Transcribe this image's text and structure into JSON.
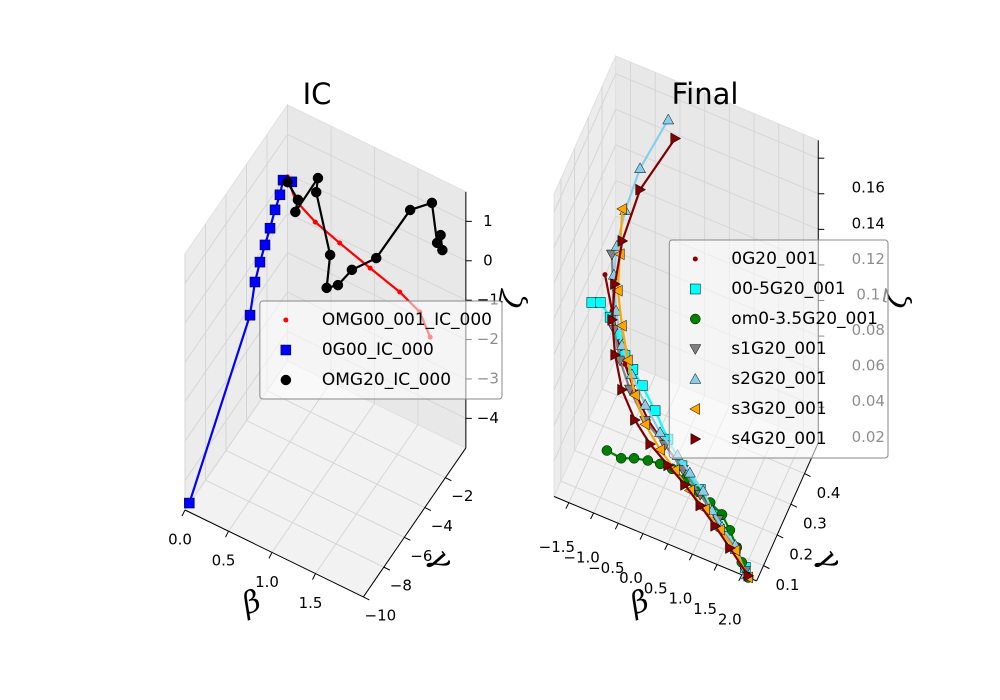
{
  "chart_data": [
    {
      "type": "scatter3d",
      "title": "IC",
      "xlabel": "β",
      "ylabel": "γ",
      "zlabel": "ζ",
      "xlim": [
        0,
        2.05
      ],
      "ylim": [
        -10,
        0
      ],
      "zlim": [
        -4.75,
        1.75
      ],
      "xticks": [
        {
          "value": 0,
          "label": "0.0"
        },
        0.5,
        {
          "value": 1,
          "label": "1.0"
        },
        1.5
      ],
      "yticks": [
        {
          "value": -10,
          "label": "−10"
        },
        {
          "value": -8,
          "label": "−8"
        },
        {
          "value": -6,
          "label": "−6"
        },
        {
          "value": -4,
          "label": "−4"
        },
        {
          "value": -2,
          "label": "−2"
        }
      ],
      "zticks": [
        {
          "value": -4,
          "label": "−4"
        },
        {
          "value": -3,
          "label": "−3"
        },
        {
          "value": -2,
          "label": "−2"
        },
        {
          "value": -1,
          "label": "−1"
        },
        0,
        1
      ],
      "grid": true,
      "legend": "center right",
      "series": [
        {
          "name": "OMG00_001_IC_000",
          "color": "#ff0000",
          "marker": "dot",
          "x": [
            0,
            0.09,
            0.32,
            0.6,
            0.95,
            1.29,
            1.52,
            1.64
          ],
          "y": [
            0,
            0,
            0,
            0,
            0,
            0,
            0,
            0
          ],
          "z": [
            -0.08,
            -0.57,
            -0.88,
            -1.11,
            -1.37,
            -1.61,
            -1.87,
            -2.38
          ]
        },
        {
          "name": "0G00_IC_000",
          "color": "#0000ff",
          "marker": "square",
          "x": [
            0.05,
            0.05,
            0.05,
            0.05,
            0.05,
            0.05,
            0.05,
            0.05,
            0.05,
            0.05
          ],
          "y": [
            -10,
            -4.08,
            -3.6,
            -3.11,
            -2.62,
            -2.13,
            -1.64,
            -1.16,
            -0.86,
            0
          ],
          "z": [
            -4.52,
            -1.99,
            -1.33,
            -1.01,
            -0.76,
            -0.52,
            -0.24,
            -0.04,
            0.22,
            -0.15
          ]
        },
        {
          "name": "OMG20_IC_000",
          "color": "#000000",
          "marker": "circle",
          "x": [
            0,
            0.12,
            0.09,
            0.35,
            0.33,
            0.49,
            0.45,
            0.58,
            0.74,
            1.02,
            1.41,
            1.66,
            1.72,
            1.76,
            1.78
          ],
          "y": [
            0,
            0,
            0,
            0,
            0,
            0,
            0,
            0,
            0,
            0,
            0,
            0,
            0,
            0,
            0
          ],
          "z": [
            -0.21,
            -0.53,
            -0.87,
            0.27,
            -0.11,
            -1.53,
            -2.41,
            -2.2,
            -1.64,
            -1.04,
            0.6,
            1.05,
            0.1,
            0.34,
            -0.02
          ]
        }
      ]
    },
    {
      "type": "scatter3d",
      "title": "Final",
      "xlabel": "β",
      "ylabel": "γ",
      "zlabel": "ζ",
      "xlim": [
        -1.8,
        2.3
      ],
      "ylim": [
        0.05,
        0.5
      ],
      "zlim": [
        0,
        0.17
      ],
      "xticks": [
        {
          "value": -1.5,
          "label": "−1.5"
        },
        {
          "value": -1,
          "label": "−1.0"
        },
        {
          "value": -0.5,
          "label": "−0.5"
        },
        {
          "value": 0,
          "label": "0.0"
        },
        0.5,
        {
          "value": 1,
          "label": "1.0"
        },
        1.5,
        {
          "value": 2,
          "label": "2.0"
        }
      ],
      "yticks": [
        0.1,
        0.2,
        0.3,
        0.4
      ],
      "zticks": [
        0.02,
        0.04,
        0.06,
        0.08,
        0.1,
        0.12,
        0.14,
        0.16
      ],
      "grid": true,
      "legend": "center right",
      "series": [
        {
          "name": "0G20_001",
          "color": "#8b0000",
          "marker": "dot",
          "x": [
            -1.74,
            -1.18,
            -1.06,
            -0.92,
            -0.72,
            -0.45,
            -0.11,
            0.65,
            1.02,
            1.38,
            1.73,
            2.13
          ],
          "y": [
            0.4,
            0.25,
            0.25,
            0.25,
            0.25,
            0.25,
            0.25,
            0.1,
            0.1,
            0.1,
            0.1,
            0.05
          ],
          "z": [
            0.065,
            0.077,
            0.062,
            0.05,
            0.037,
            0.024,
            0.014,
            0.036,
            0.025,
            0.015,
            0.003,
            0.001
          ]
        },
        {
          "name": "00-5G20_001",
          "color": "#00ffff",
          "marker": "square",
          "x": [
            -1.59,
            -1.42,
            -1.22,
            -1.06,
            -0.92,
            -0.76,
            -0.57,
            -0.31,
            -0.05,
            0.65,
            1.02,
            1.38,
            1.73,
            2.07
          ],
          "y": [
            0.25,
            0.25,
            0.25,
            0.25,
            0.25,
            0.25,
            0.25,
            0.25,
            0.25,
            0.1,
            0.1,
            0.1,
            0.1,
            0.05
          ],
          "z": [
            0.077,
            0.079,
            0.073,
            0.065,
            0.055,
            0.049,
            0.042,
            0.031,
            0.018,
            0.037,
            0.028,
            0.018,
            0.003,
            0.005
          ]
        },
        {
          "name": "om0-3.5G20_001",
          "color": "#008000",
          "marker": "circle",
          "x": [
            -0.87,
            -0.58,
            -0.32,
            -0.04,
            0.21,
            0.45,
            0.71,
            0.96,
            1.22,
            1.46,
            1.62,
            1.76,
            2.0,
            2.13
          ],
          "y": [
            0.1,
            0.1,
            0.1,
            0.1,
            0.1,
            0.1,
            0.1,
            0.1,
            0.1,
            0.1,
            0.1,
            0.1,
            0.05,
            0.05
          ],
          "z": [
            0.028,
            0.027,
            0.03,
            0.032,
            0.033,
            0.033,
            0.03,
            0.026,
            0.023,
            0.019,
            0.012,
            0.004,
            0.007,
            0
          ]
        },
        {
          "name": "s1G20_001",
          "color": "#808080",
          "marker": "triangle-down",
          "x": [
            -1.6,
            -1.14,
            -1.02,
            -0.82,
            -0.51,
            -0.11,
            0.67,
            1.02,
            1.38,
            1.73,
            2.07
          ],
          "y": [
            0.4,
            0.25,
            0.25,
            0.25,
            0.25,
            0.25,
            0.1,
            0.1,
            0.1,
            0.1,
            0.05
          ],
          "z": [
            0.078,
            0.067,
            0.051,
            0.037,
            0.023,
            0.014,
            0.035,
            0.025,
            0.015,
            0.003,
            0.003
          ]
        },
        {
          "name": "s2G20_001",
          "color": "#87ceeb",
          "marker": "triangle-up",
          "x": [
            -0.46,
            -1.03,
            -1.33,
            -1.5,
            -1.56,
            -1.1,
            -0.98,
            -0.78,
            -0.51,
            -0.21,
            0.56,
            0.81,
            1.08,
            1.26,
            1.46,
            1.73,
            2.07
          ],
          "y": [
            0.4,
            0.4,
            0.4,
            0.4,
            0.4,
            0.25,
            0.25,
            0.25,
            0.25,
            0.25,
            0.1,
            0.1,
            0.1,
            0.1,
            0.1,
            0.1,
            0.05
          ],
          "z": [
            0.167,
            0.133,
            0.106,
            0.084,
            0.067,
            0.078,
            0.06,
            0.046,
            0.032,
            0.02,
            0.042,
            0.035,
            0.028,
            0.019,
            0.012,
            0.005,
            0.001
          ]
        },
        {
          "name": "s3G20_001",
          "color": "#ffa500",
          "marker": "triangle-left",
          "x": [
            -1.39,
            -1.44,
            -1.48,
            -0.98,
            -0.86,
            -0.72,
            -0.51,
            0.21,
            0.51,
            0.81,
            1.12,
            1.42,
            1.73,
            2.13
          ],
          "y": [
            0.4,
            0.4,
            0.4,
            0.25,
            0.25,
            0.25,
            0.25,
            0.1,
            0.1,
            0.1,
            0.1,
            0.1,
            0.1,
            0.05
          ],
          "z": [
            0.106,
            0.08,
            0.059,
            0.071,
            0.053,
            0.035,
            0.021,
            0.041,
            0.033,
            0.025,
            0.018,
            0.01,
            0.002,
            0
          ]
        },
        {
          "name": "s4G20_001",
          "color": "#800000",
          "marker": "triangle-right",
          "x": [
            -0.32,
            -1.03,
            -1.39,
            -1.54,
            -1.18,
            -1.12,
            -0.98,
            -0.72,
            -0.41,
            0.37,
            0.71,
            1.02,
            1.32,
            1.62,
            2.13
          ],
          "y": [
            0.4,
            0.4,
            0.4,
            0.4,
            0.25,
            0.25,
            0.25,
            0.25,
            0.25,
            0.1,
            0.1,
            0.1,
            0.1,
            0.1,
            0.05
          ],
          "z": [
            0.158,
            0.121,
            0.088,
            0.062,
            0.072,
            0.053,
            0.035,
            0.021,
            0.011,
            0.034,
            0.027,
            0.019,
            0.011,
            0.002,
            0.001
          ]
        }
      ]
    }
  ]
}
